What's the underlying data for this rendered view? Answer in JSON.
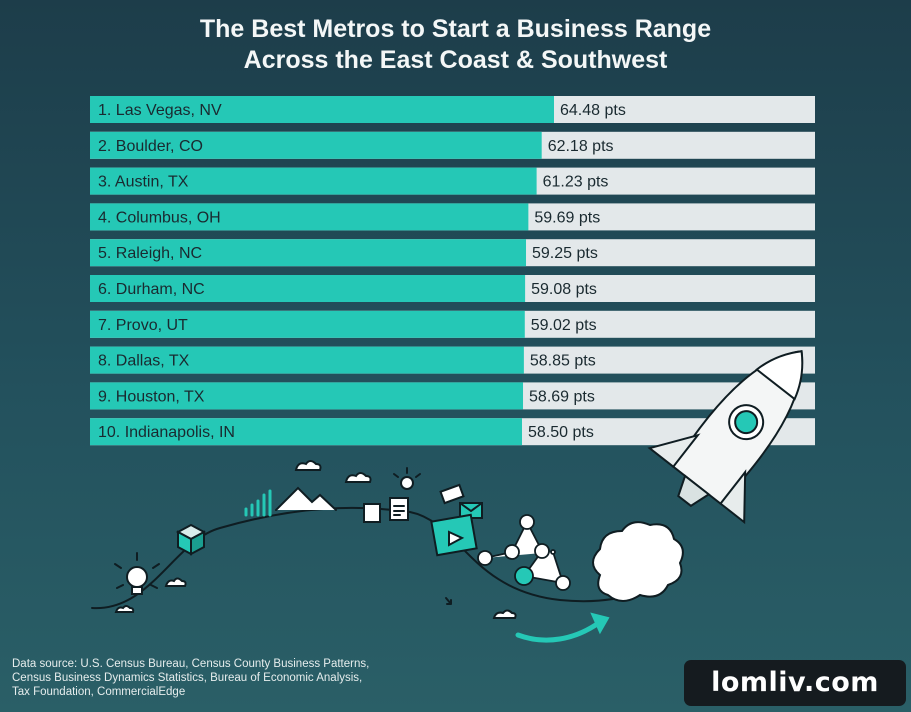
{
  "title_line1": "The Best Metros to Start a Business Range",
  "title_line2": "Across the East Coast & Southwest",
  "chart_data": {
    "type": "bar",
    "orientation": "horizontal",
    "categories": [
      "1. Las Vegas, NV",
      "2. Boulder, CO",
      "3. Austin, TX",
      "4. Columbus, OH",
      "5. Raleigh, NC",
      "6. Durham, NC",
      "7. Provo, UT",
      "8. Dallas, TX",
      "9. Houston, TX",
      "10. Indianapolis, IN"
    ],
    "values": [
      64.48,
      62.18,
      61.23,
      59.69,
      59.25,
      59.08,
      59.02,
      58.85,
      58.69,
      58.5
    ],
    "labels": [
      "64.48 pts",
      "62.18 pts",
      "61.23 pts",
      "59.69 pts",
      "59.25 pts",
      "59.08 pts",
      "59.02 pts",
      "58.85 pts",
      "58.69 pts",
      "58.50 pts"
    ],
    "unit": "pts",
    "colors": {
      "bar": "#25c8b6",
      "track": "#e3e8ea",
      "text": "#1a2a30"
    }
  },
  "source_lines": [
    "Data source: U.S. Census Bureau, Census County Business Patterns,",
    "Census Business Dynamics Statistics, Bureau of Economic Analysis,",
    "Tax Foundation, CommercialEdge"
  ],
  "watermark": "lomliv.com"
}
